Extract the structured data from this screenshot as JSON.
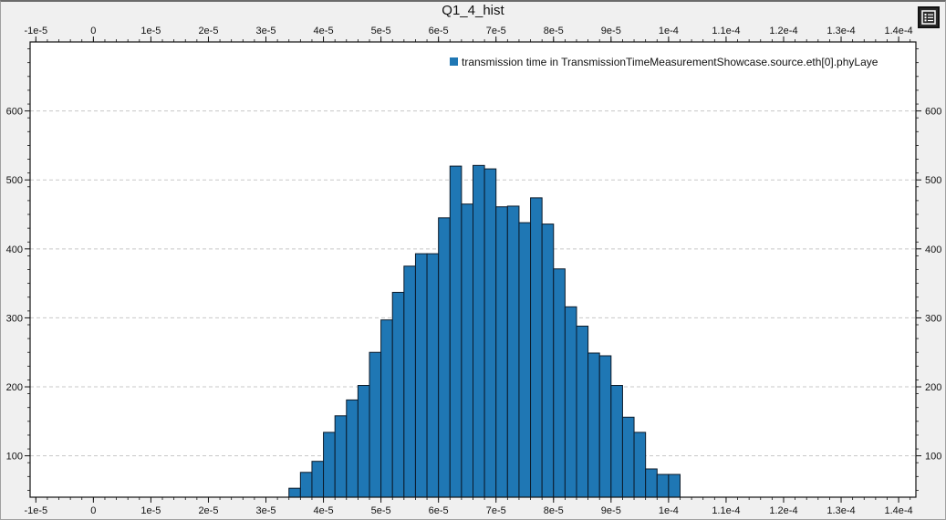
{
  "chart_data": {
    "type": "bar",
    "title": "Q1_4_hist",
    "xlabel": "",
    "ylabel": "",
    "xlim": [
      -1.1e-05,
      0.000143
    ],
    "ylim": [
      40,
      700
    ],
    "grid": "horizontal dashed",
    "legend_position": "top-right",
    "x_tick_labels": [
      "-1e-5",
      "0",
      "1e-5",
      "2e-5",
      "3e-5",
      "4e-5",
      "5e-5",
      "6e-5",
      "7e-5",
      "8e-5",
      "9e-5",
      "1e-4",
      "1.1e-4",
      "1.2e-4",
      "1.3e-4",
      "1.4e-4"
    ],
    "y_tick_labels": [
      "100",
      "200",
      "300",
      "400",
      "500",
      "600"
    ],
    "series": [
      {
        "name": "transmission time in TransmissionTimeMeasurementShowcase.source.eth[0].phyLaye",
        "color": "#1f77b4",
        "bin_width": 2e-06,
        "bin_starts": [
          3.4e-05,
          3.6e-05,
          3.8e-05,
          4e-05,
          4.2e-05,
          4.4e-05,
          4.6e-05,
          4.8e-05,
          5e-05,
          5.2e-05,
          5.4e-05,
          5.6e-05,
          5.8e-05,
          6e-05,
          6.2e-05,
          6.4e-05,
          6.6e-05,
          6.8e-05,
          7e-05,
          7.2e-05,
          7.4e-05,
          7.6e-05,
          7.8e-05,
          8e-05,
          8.2e-05,
          8.4e-05,
          8.6e-05,
          8.8e-05,
          9e-05,
          9.2e-05,
          9.4e-05,
          9.6e-05,
          9.8e-05,
          0.0001
        ],
        "values": [
          53,
          76,
          92,
          134,
          158,
          181,
          202,
          250,
          297,
          337,
          375,
          393,
          393,
          445,
          520,
          465,
          521,
          516,
          461,
          462,
          438,
          474,
          436,
          371,
          316,
          288,
          249,
          245,
          202,
          156,
          134,
          81,
          73,
          73
        ]
      }
    ]
  },
  "legend_icon": "list-icon"
}
